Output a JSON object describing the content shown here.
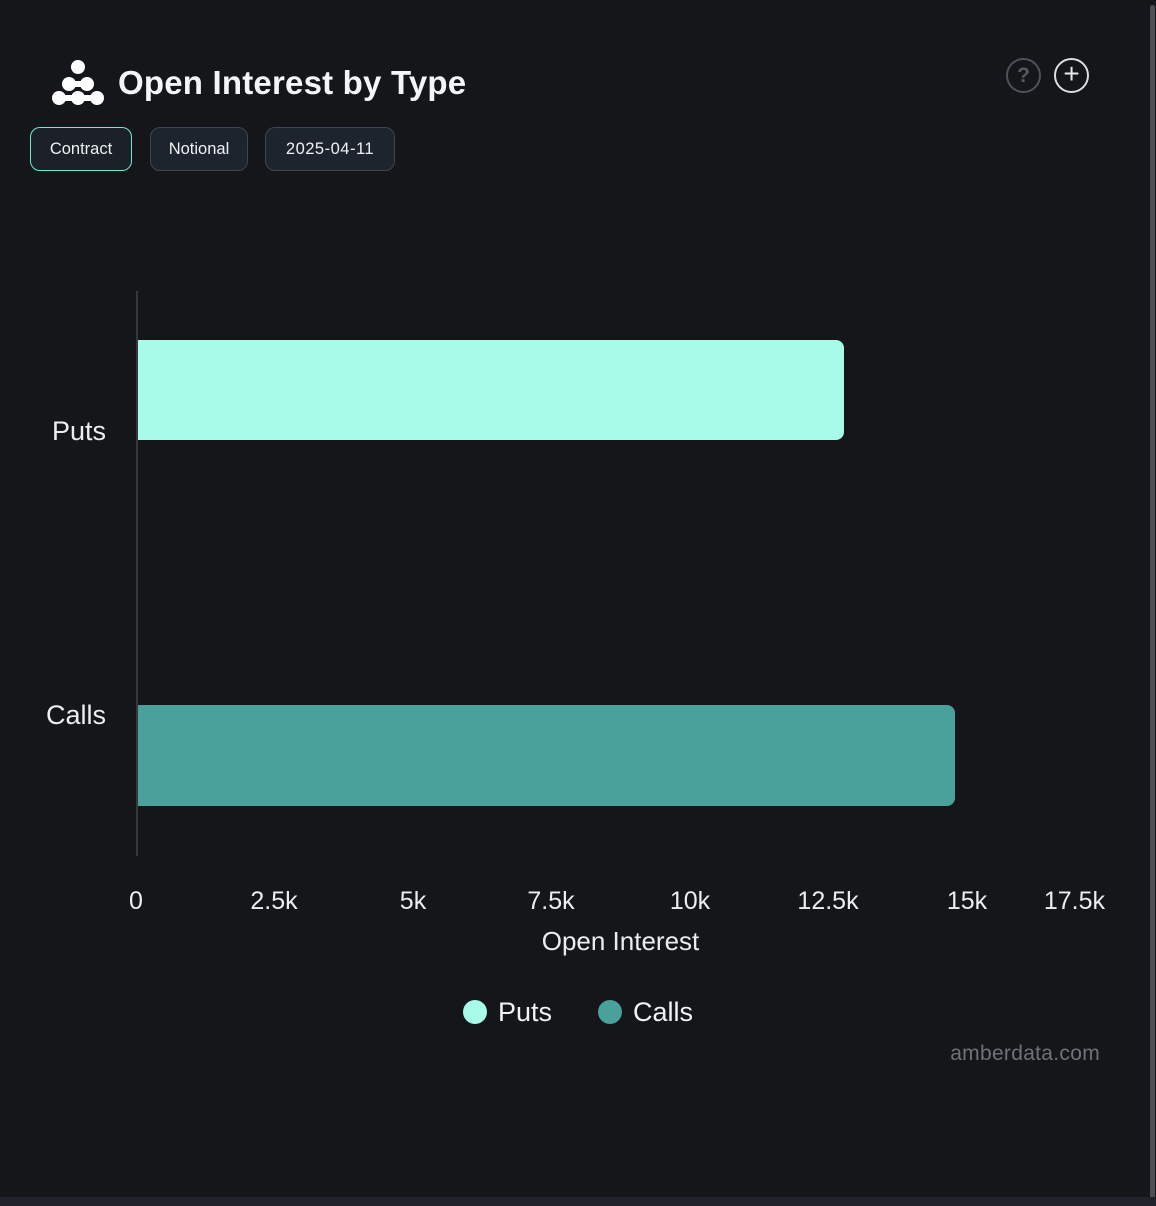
{
  "header": {
    "title": "Open Interest by Type",
    "help_label": "?",
    "add_label": "+"
  },
  "toolbar": {
    "buttons": [
      {
        "label": "Contract",
        "active": true
      },
      {
        "label": "Notional",
        "active": false
      },
      {
        "label": "2025-04-11",
        "active": false
      }
    ]
  },
  "watermark": "amberdata.com",
  "colors": {
    "background": "#141619",
    "puts": "#a8fbe9",
    "calls": "#4aa09a",
    "active_button_border": "#79e7d0",
    "axis_line": "#34383d"
  },
  "chart_data": {
    "type": "bar",
    "orientation": "horizontal",
    "title": "Open Interest by Type",
    "categories": [
      "Puts",
      "Calls"
    ],
    "values": [
      12750,
      14750
    ],
    "colors": [
      "#a8fbe9",
      "#4aa09a"
    ],
    "xlabel": "Open Interest",
    "ylabel": "",
    "xlim": [
      0,
      17500
    ],
    "xticks": {
      "values": [
        0,
        2500,
        5000,
        7500,
        10000,
        12500,
        15000,
        17500
      ],
      "labels": [
        "0",
        "2.5k",
        "5k",
        "7.5k",
        "10k",
        "12.5k",
        "15k",
        "17.5k"
      ]
    },
    "grid": false,
    "legend": {
      "position": "bottom",
      "entries": [
        {
          "label": "Puts",
          "color": "#a8fbe9"
        },
        {
          "label": "Calls",
          "color": "#4aa09a"
        }
      ]
    }
  }
}
